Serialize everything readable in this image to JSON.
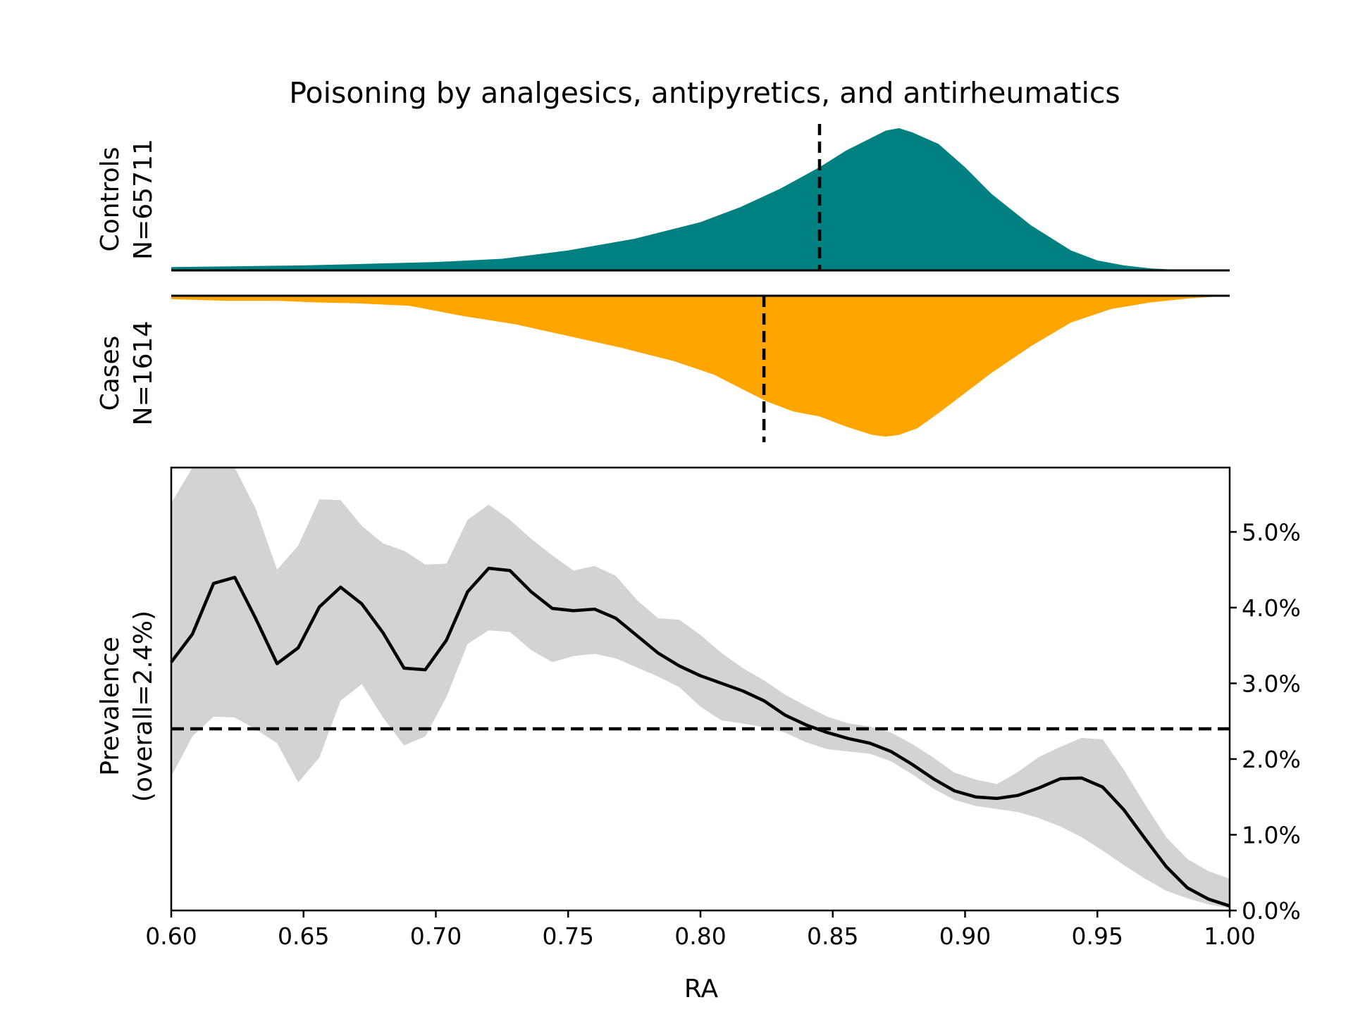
{
  "title": "Poisoning by analgesics, antipyretics, and antirheumatics",
  "colors": {
    "controls": "#008080",
    "cases": "#FFA500",
    "band": "#D3D3D3",
    "line": "#000000"
  },
  "chart_data": [
    {
      "type": "area",
      "panel": "controls",
      "ylabel": [
        "Controls",
        "N=65711"
      ],
      "xlim": [
        0.6,
        1.0
      ],
      "median_marker": 0.845,
      "x": [
        0.6,
        0.625,
        0.65,
        0.675,
        0.7,
        0.725,
        0.75,
        0.775,
        0.8,
        0.815,
        0.83,
        0.845,
        0.855,
        0.865,
        0.87,
        0.875,
        0.88,
        0.89,
        0.9,
        0.91,
        0.925,
        0.94,
        0.95,
        0.96,
        0.97,
        0.98,
        1.0
      ],
      "density": [
        0.02,
        0.025,
        0.03,
        0.04,
        0.05,
        0.07,
        0.12,
        0.19,
        0.29,
        0.38,
        0.49,
        0.62,
        0.72,
        0.8,
        0.84,
        0.855,
        0.83,
        0.76,
        0.62,
        0.46,
        0.27,
        0.12,
        0.06,
        0.03,
        0.012,
        0.004,
        0.0
      ]
    },
    {
      "type": "area",
      "panel": "cases",
      "ylabel": [
        "Cases",
        "N=1614"
      ],
      "xlim": [
        0.6,
        1.0
      ],
      "median_marker": 0.824,
      "x": [
        0.6,
        0.62,
        0.64,
        0.655,
        0.67,
        0.69,
        0.71,
        0.73,
        0.75,
        0.77,
        0.79,
        0.805,
        0.815,
        0.825,
        0.835,
        0.845,
        0.855,
        0.865,
        0.87,
        0.875,
        0.882,
        0.89,
        0.9,
        0.91,
        0.925,
        0.94,
        0.955,
        0.97,
        0.985,
        1.0
      ],
      "density": [
        0.02,
        0.03,
        0.03,
        0.04,
        0.045,
        0.06,
        0.12,
        0.17,
        0.24,
        0.31,
        0.39,
        0.47,
        0.55,
        0.63,
        0.69,
        0.72,
        0.78,
        0.83,
        0.84,
        0.83,
        0.79,
        0.7,
        0.58,
        0.46,
        0.3,
        0.16,
        0.08,
        0.04,
        0.015,
        0.0
      ]
    },
    {
      "type": "line",
      "panel": "prevalence",
      "title": "",
      "xlabel": "RA",
      "ylabel": [
        "Prevalence",
        "(overall=2.4%)"
      ],
      "xlim": [
        0.6,
        1.0
      ],
      "ylim": [
        0.0,
        5.85
      ],
      "x_ticks": [
        0.6,
        0.65,
        0.7,
        0.75,
        0.8,
        0.85,
        0.9,
        0.95,
        1.0
      ],
      "x_tick_labels": [
        "0.60",
        "0.65",
        "0.70",
        "0.75",
        "0.80",
        "0.85",
        "0.90",
        "0.95",
        "1.00"
      ],
      "y_ticks": [
        0.0,
        1.0,
        2.0,
        3.0,
        4.0,
        5.0
      ],
      "y_tick_labels": [
        "0.0%",
        "1.0%",
        "2.0%",
        "3.0%",
        "4.0%",
        "5.0%"
      ],
      "y_axis_side": "right",
      "overall_line": 2.4,
      "x": [
        0.6,
        0.608,
        0.616,
        0.624,
        0.632,
        0.64,
        0.648,
        0.656,
        0.664,
        0.672,
        0.68,
        0.688,
        0.696,
        0.704,
        0.712,
        0.72,
        0.728,
        0.736,
        0.744,
        0.752,
        0.76,
        0.768,
        0.776,
        0.784,
        0.792,
        0.8,
        0.808,
        0.816,
        0.824,
        0.832,
        0.84,
        0.848,
        0.856,
        0.864,
        0.872,
        0.88,
        0.888,
        0.896,
        0.904,
        0.912,
        0.92,
        0.928,
        0.936,
        0.944,
        0.952,
        0.96,
        0.968,
        0.976,
        0.984,
        0.992,
        1.0
      ],
      "series": [
        {
          "name": "prevalence",
          "values": [
            3.28,
            3.65,
            4.32,
            4.4,
            3.85,
            3.26,
            3.47,
            4.01,
            4.27,
            4.05,
            3.67,
            3.2,
            3.18,
            3.57,
            4.21,
            4.52,
            4.49,
            4.21,
            3.99,
            3.96,
            3.98,
            3.86,
            3.63,
            3.4,
            3.23,
            3.1,
            3.0,
            2.9,
            2.77,
            2.58,
            2.45,
            2.35,
            2.27,
            2.21,
            2.1,
            1.93,
            1.74,
            1.58,
            1.5,
            1.48,
            1.52,
            1.62,
            1.74,
            1.75,
            1.63,
            1.33,
            0.95,
            0.58,
            0.3,
            0.15,
            0.06
          ]
        },
        {
          "name": "ci_upper",
          "values": [
            5.38,
            5.9,
            5.9,
            5.9,
            5.3,
            4.5,
            4.82,
            5.43,
            5.42,
            5.08,
            4.85,
            4.75,
            4.57,
            4.58,
            5.16,
            5.36,
            5.16,
            4.91,
            4.69,
            4.49,
            4.55,
            4.42,
            4.1,
            3.86,
            3.84,
            3.64,
            3.4,
            3.2,
            3.04,
            2.85,
            2.7,
            2.56,
            2.47,
            2.43,
            2.35,
            2.2,
            2.02,
            1.82,
            1.73,
            1.67,
            1.83,
            2.03,
            2.16,
            2.28,
            2.26,
            1.86,
            1.4,
            0.97,
            0.68,
            0.52,
            0.42
          ]
        },
        {
          "name": "ci_lower",
          "values": [
            1.77,
            2.3,
            2.56,
            2.55,
            2.39,
            2.21,
            1.69,
            2.02,
            2.77,
            2.99,
            2.55,
            2.18,
            2.3,
            2.82,
            3.52,
            3.7,
            3.68,
            3.44,
            3.28,
            3.36,
            3.39,
            3.33,
            3.21,
            3.09,
            2.95,
            2.69,
            2.51,
            2.47,
            2.42,
            2.35,
            2.22,
            2.13,
            2.1,
            2.07,
            1.97,
            1.8,
            1.61,
            1.46,
            1.38,
            1.34,
            1.3,
            1.22,
            1.11,
            0.97,
            0.79,
            0.6,
            0.42,
            0.26,
            0.16,
            0.08,
            0.03
          ]
        }
      ]
    }
  ]
}
